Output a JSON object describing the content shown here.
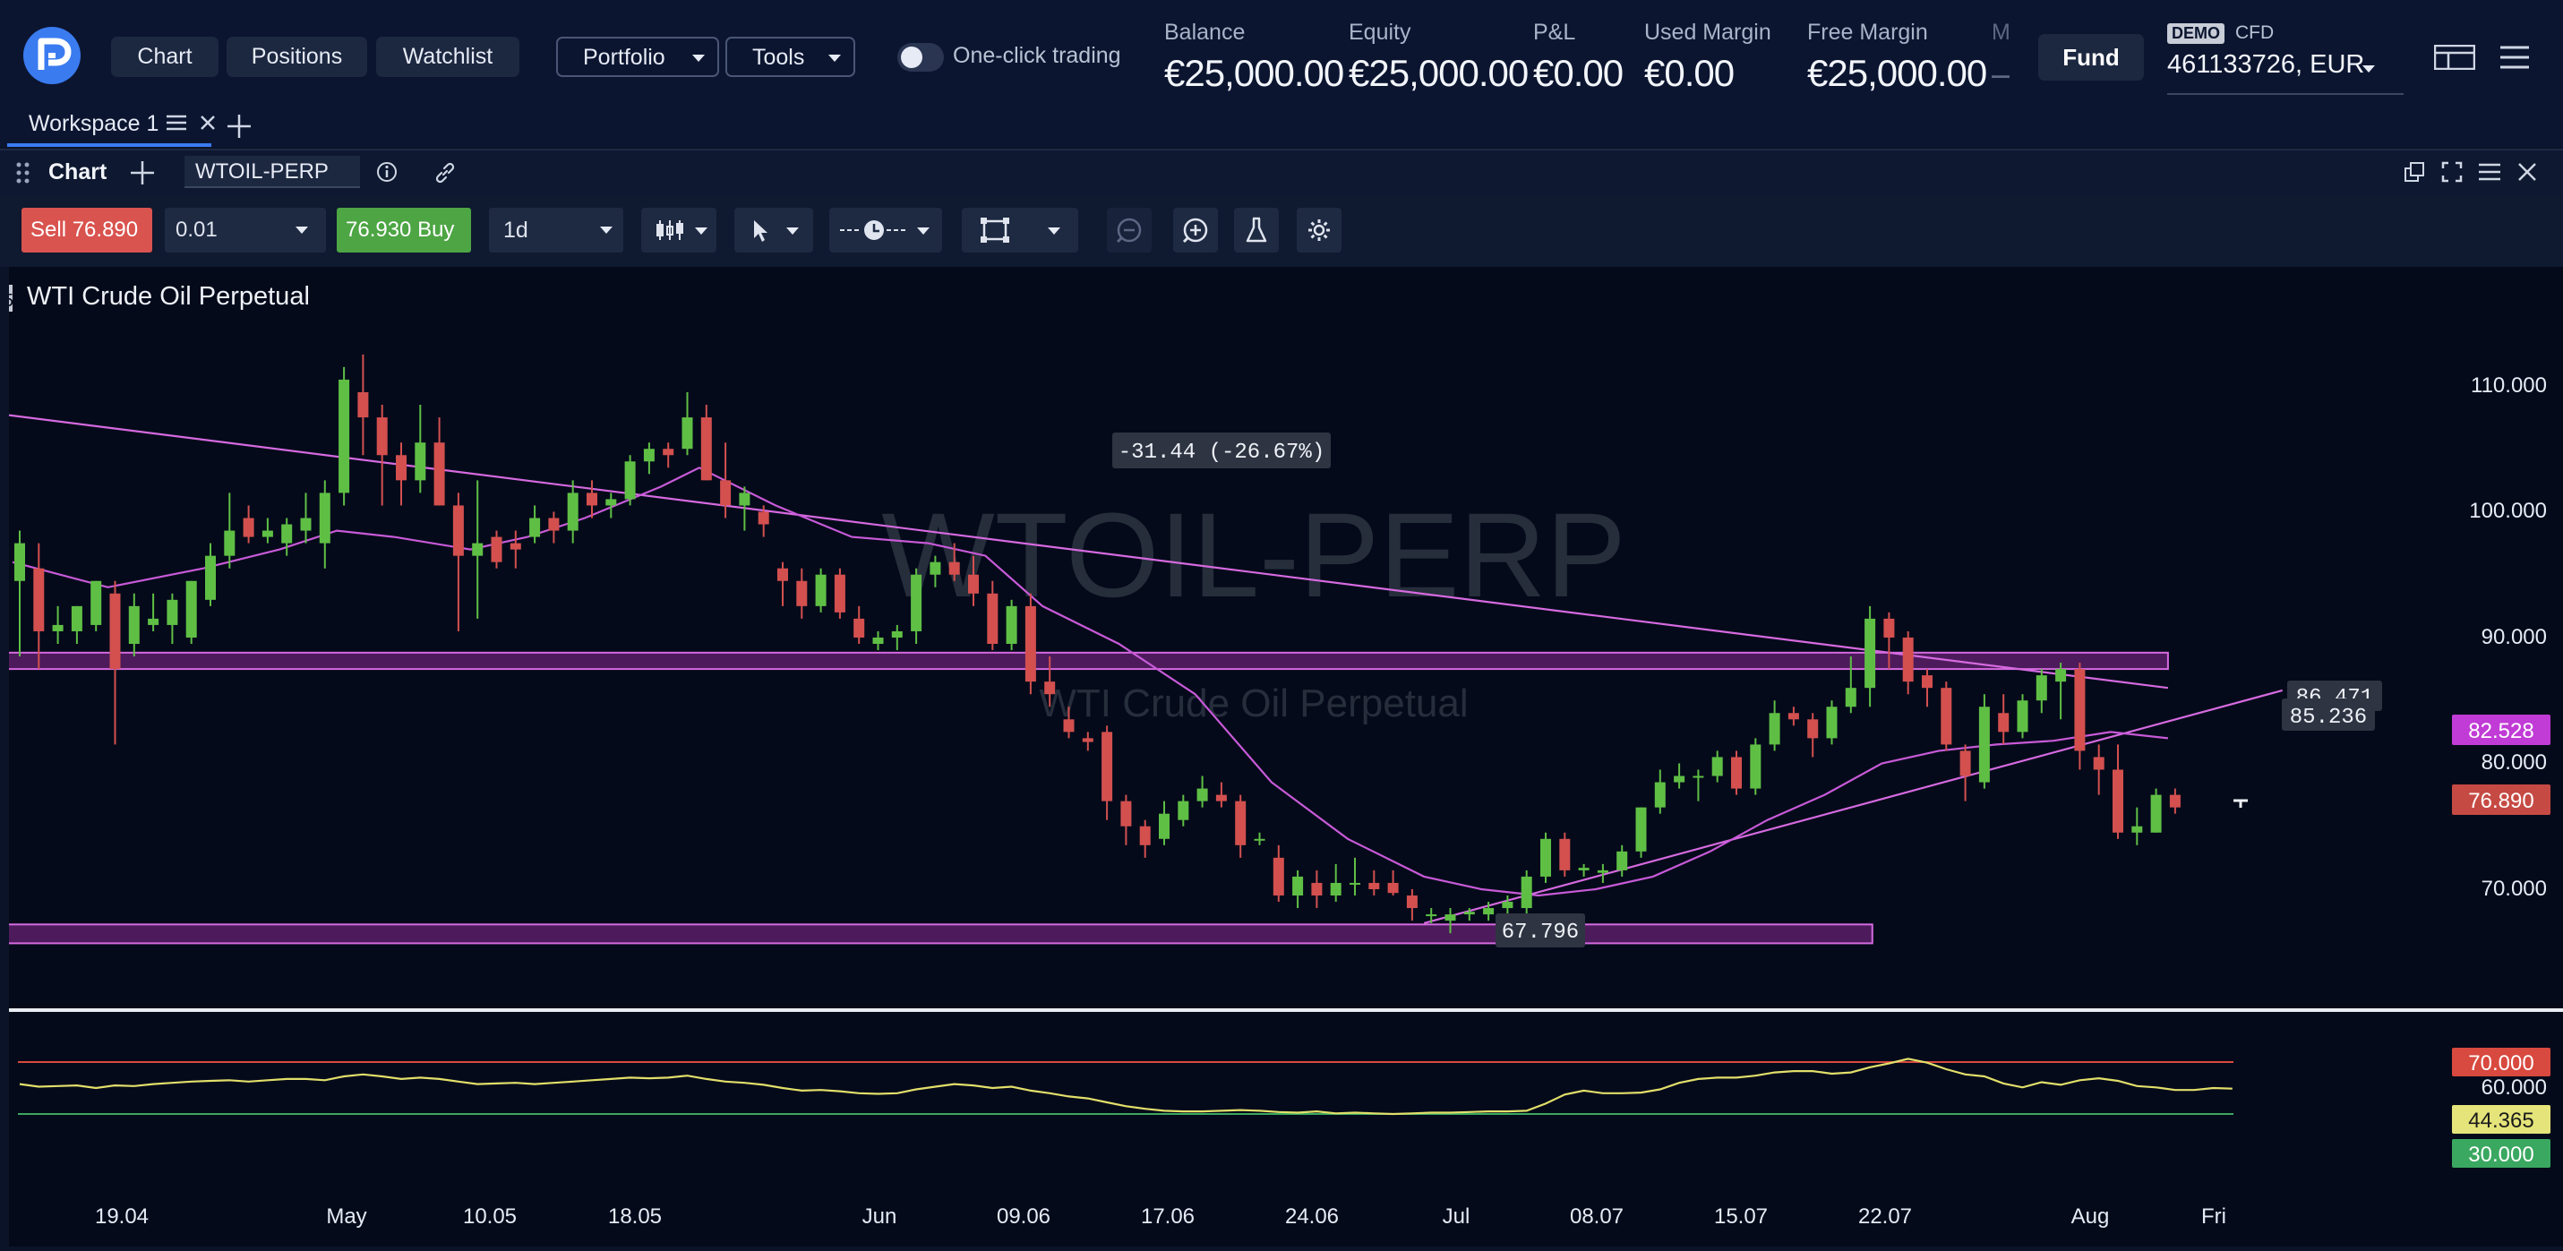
{
  "topbar": {
    "nav": [
      "Chart",
      "Positions",
      "Watchlist"
    ],
    "menus": [
      "Portfolio",
      "Tools"
    ],
    "one_click_label": "One-click trading",
    "stats": [
      {
        "label": "Balance",
        "value": "€25,000.00"
      },
      {
        "label": "Equity",
        "value": "€25,000.00"
      },
      {
        "label": "P&L",
        "value": "€0.00"
      },
      {
        "label": "Used Margin",
        "value": "€0.00"
      },
      {
        "label": "Free Margin",
        "value": "€25,000.00"
      },
      {
        "label": "M",
        "value": "–"
      }
    ],
    "fund_label": "Fund",
    "demo_badge": "DEMO",
    "account_type": "CFD",
    "account": "461133726, EUR"
  },
  "workspace": {
    "tab_label": "Workspace 1"
  },
  "panel": {
    "title": "Chart",
    "symbol": "WTOIL-PERP"
  },
  "toolbar": {
    "sell_label": "Sell",
    "sell_price": "76.890",
    "quantity": "0.01",
    "buy_price": "76.930",
    "buy_label": "Buy",
    "timeframe": "1d"
  },
  "chart": {
    "name": "WTI Crude Oil Perpetual",
    "watermark_symbol": "WTOIL-PERP",
    "watermark_name": "WTI Crude Oil Perpetual",
    "left_edge_marker": "5",
    "measure_label": "-31.44 (-26.67%)",
    "low_label": "67.796",
    "line_label_a": "86.471",
    "line_label_b": "85.236",
    "price_ticks": [
      "110.000",
      "100.000",
      "90.000",
      "80.000",
      "70.000"
    ],
    "badges": [
      {
        "value": "82.528",
        "color": "#c13bd6"
      },
      {
        "value": "76.890",
        "color": "#c64a44"
      }
    ],
    "rsi_ticks": [
      "60.000"
    ],
    "rsi_badges": [
      {
        "value": "70.000",
        "color": "#d8493f"
      },
      {
        "value": "44.365",
        "color": "#e4e47a"
      },
      {
        "value": "30.000",
        "color": "#3aa860"
      }
    ],
    "date_ticks": [
      "19.04",
      "May",
      "10.05",
      "18.05",
      "Jun",
      "09.06",
      "17.06",
      "24.06",
      "Jul",
      "08.07",
      "15.07",
      "22.07",
      "Aug",
      "Fri"
    ],
    "colors": {
      "up": "#5fbf45",
      "down": "#d3504f",
      "ma": "#c85ad8",
      "trend": "#d66ae0",
      "rsi": "#e2df6a"
    }
  },
  "chart_data": {
    "type": "candlestick",
    "title": "WTI Crude Oil Perpetual",
    "ylim": [
      60,
      115
    ],
    "candles": [
      {
        "o": 95,
        "h": 99,
        "l": 89,
        "c": 98
      },
      {
        "o": 96,
        "h": 98,
        "l": 88,
        "c": 91
      },
      {
        "o": 91,
        "h": 93,
        "l": 90,
        "c": 91.5
      },
      {
        "o": 91,
        "h": 93,
        "l": 90,
        "c": 93
      },
      {
        "o": 91.5,
        "h": 95,
        "l": 91,
        "c": 95
      },
      {
        "o": 94,
        "h": 95,
        "l": 82,
        "c": 88
      },
      {
        "o": 90,
        "h": 94,
        "l": 89,
        "c": 93
      },
      {
        "o": 91.5,
        "h": 94,
        "l": 91,
        "c": 92
      },
      {
        "o": 91.5,
        "h": 94,
        "l": 90,
        "c": 93.5
      },
      {
        "o": 90.5,
        "h": 95,
        "l": 90,
        "c": 95
      },
      {
        "o": 93.5,
        "h": 98,
        "l": 93,
        "c": 97
      },
      {
        "o": 97,
        "h": 102,
        "l": 96,
        "c": 99
      },
      {
        "o": 100,
        "h": 101,
        "l": 98,
        "c": 98.5
      },
      {
        "o": 98.5,
        "h": 100,
        "l": 98,
        "c": 99
      },
      {
        "o": 98,
        "h": 100,
        "l": 97,
        "c": 99.5
      },
      {
        "o": 99,
        "h": 102,
        "l": 98,
        "c": 100
      },
      {
        "o": 98,
        "h": 103,
        "l": 96,
        "c": 102
      },
      {
        "o": 102,
        "h": 112,
        "l": 101,
        "c": 111
      },
      {
        "o": 110,
        "h": 113,
        "l": 105,
        "c": 108
      },
      {
        "o": 108,
        "h": 109,
        "l": 101,
        "c": 105
      },
      {
        "o": 105,
        "h": 106,
        "l": 101,
        "c": 103
      },
      {
        "o": 103,
        "h": 109,
        "l": 102,
        "c": 106
      },
      {
        "o": 106,
        "h": 108,
        "l": 101,
        "c": 101
      },
      {
        "o": 101,
        "h": 102,
        "l": 91,
        "c": 97
      },
      {
        "o": 97,
        "h": 103,
        "l": 92,
        "c": 98
      },
      {
        "o": 98.5,
        "h": 99,
        "l": 96,
        "c": 96.5
      },
      {
        "o": 98,
        "h": 99,
        "l": 96,
        "c": 97.5
      },
      {
        "o": 98.5,
        "h": 101,
        "l": 98,
        "c": 100
      },
      {
        "o": 100,
        "h": 100.5,
        "l": 98,
        "c": 99
      },
      {
        "o": 99,
        "h": 103,
        "l": 98,
        "c": 102
      },
      {
        "o": 102,
        "h": 103,
        "l": 100,
        "c": 101
      },
      {
        "o": 101,
        "h": 102,
        "l": 100,
        "c": 101.5
      },
      {
        "o": 101.5,
        "h": 105,
        "l": 101,
        "c": 104.5
      },
      {
        "o": 104.5,
        "h": 106,
        "l": 103.5,
        "c": 105.5
      },
      {
        "o": 105.5,
        "h": 106,
        "l": 104,
        "c": 105
      },
      {
        "o": 105.5,
        "h": 110,
        "l": 105,
        "c": 108
      },
      {
        "o": 108,
        "h": 109,
        "l": 103,
        "c": 103
      },
      {
        "o": 103,
        "h": 106,
        "l": 100,
        "c": 101
      },
      {
        "o": 101,
        "h": 102.5,
        "l": 99,
        "c": 102
      },
      {
        "o": 100.5,
        "h": 101,
        "l": 98.5,
        "c": 99.5
      },
      {
        "o": 96,
        "h": 96.5,
        "l": 93,
        "c": 95
      },
      {
        "o": 95,
        "h": 96,
        "l": 92,
        "c": 93
      },
      {
        "o": 93,
        "h": 96,
        "l": 92.5,
        "c": 95.5
      },
      {
        "o": 95.5,
        "h": 96,
        "l": 92,
        "c": 92.5
      },
      {
        "o": 92,
        "h": 93,
        "l": 90,
        "c": 90.5
      },
      {
        "o": 90,
        "h": 91,
        "l": 89.5,
        "c": 90.5
      },
      {
        "o": 90.5,
        "h": 91.5,
        "l": 89.5,
        "c": 91
      },
      {
        "o": 91,
        "h": 96,
        "l": 90,
        "c": 95.5
      },
      {
        "o": 95.5,
        "h": 97,
        "l": 94.5,
        "c": 96.5
      },
      {
        "o": 96.5,
        "h": 98,
        "l": 95,
        "c": 95.5
      },
      {
        "o": 95.5,
        "h": 97,
        "l": 93,
        "c": 94
      },
      {
        "o": 94,
        "h": 95,
        "l": 89.5,
        "c": 90
      },
      {
        "o": 90,
        "h": 93.5,
        "l": 89.5,
        "c": 93
      },
      {
        "o": 93,
        "h": 94,
        "l": 86,
        "c": 87
      },
      {
        "o": 87,
        "h": 89,
        "l": 85,
        "c": 86
      },
      {
        "o": 84,
        "h": 85,
        "l": 82.5,
        "c": 83
      },
      {
        "o": 82.5,
        "h": 83,
        "l": 81.5,
        "c": 82.2
      },
      {
        "o": 83,
        "h": 83.5,
        "l": 76,
        "c": 77.5
      },
      {
        "o": 77.5,
        "h": 78,
        "l": 74,
        "c": 75.5
      },
      {
        "o": 75.5,
        "h": 76,
        "l": 73,
        "c": 74
      },
      {
        "o": 74.5,
        "h": 77.5,
        "l": 74,
        "c": 76.5
      },
      {
        "o": 76,
        "h": 78,
        "l": 75.5,
        "c": 77.5
      },
      {
        "o": 77.5,
        "h": 79.5,
        "l": 77,
        "c": 78.5
      },
      {
        "o": 78,
        "h": 79,
        "l": 77,
        "c": 77.5
      },
      {
        "o": 77.5,
        "h": 78,
        "l": 73,
        "c": 74
      },
      {
        "o": 74.5,
        "h": 75,
        "l": 74,
        "c": 74.5
      },
      {
        "o": 73,
        "h": 74,
        "l": 69.5,
        "c": 70
      },
      {
        "o": 70,
        "h": 72,
        "l": 69,
        "c": 71.5
      },
      {
        "o": 71,
        "h": 72,
        "l": 69,
        "c": 70
      },
      {
        "o": 70,
        "h": 72.5,
        "l": 69.5,
        "c": 71
      },
      {
        "o": 71,
        "h": 73,
        "l": 70,
        "c": 71
      },
      {
        "o": 71,
        "h": 72,
        "l": 70,
        "c": 70.5
      },
      {
        "o": 71,
        "h": 72,
        "l": 70,
        "c": 70.2
      },
      {
        "o": 70,
        "h": 70.5,
        "l": 68,
        "c": 69
      },
      {
        "o": 68.5,
        "h": 69,
        "l": 67.8,
        "c": 68.5
      },
      {
        "o": 68,
        "h": 69,
        "l": 67,
        "c": 68.5
      },
      {
        "o": 68.5,
        "h": 69,
        "l": 68,
        "c": 68.7
      },
      {
        "o": 68.5,
        "h": 69.5,
        "l": 68,
        "c": 69
      },
      {
        "o": 69,
        "h": 70,
        "l": 68,
        "c": 69.5
      },
      {
        "o": 69,
        "h": 72,
        "l": 68.5,
        "c": 71.5
      },
      {
        "o": 71.5,
        "h": 75,
        "l": 71,
        "c": 74.5
      },
      {
        "o": 74.5,
        "h": 75,
        "l": 71.5,
        "c": 72
      },
      {
        "o": 72,
        "h": 72.5,
        "l": 71.5,
        "c": 72.2
      },
      {
        "o": 71.8,
        "h": 72.5,
        "l": 71,
        "c": 72
      },
      {
        "o": 72,
        "h": 74,
        "l": 71.5,
        "c": 73.5
      },
      {
        "o": 73.5,
        "h": 77,
        "l": 73,
        "c": 77
      },
      {
        "o": 77,
        "h": 80,
        "l": 76.5,
        "c": 79
      },
      {
        "o": 79,
        "h": 80.5,
        "l": 78.5,
        "c": 79.5
      },
      {
        "o": 79.5,
        "h": 80,
        "l": 77.5,
        "c": 79.5
      },
      {
        "o": 79.5,
        "h": 81.5,
        "l": 79,
        "c": 81
      },
      {
        "o": 81,
        "h": 81.5,
        "l": 78,
        "c": 78.5
      },
      {
        "o": 78.5,
        "h": 82.5,
        "l": 78,
        "c": 82
      },
      {
        "o": 82,
        "h": 85.5,
        "l": 81.5,
        "c": 84.5
      },
      {
        "o": 84.5,
        "h": 85,
        "l": 83.5,
        "c": 84
      },
      {
        "o": 84,
        "h": 84.5,
        "l": 81,
        "c": 82.5
      },
      {
        "o": 82.5,
        "h": 85.5,
        "l": 82,
        "c": 85
      },
      {
        "o": 85,
        "h": 89,
        "l": 84.5,
        "c": 86.5
      },
      {
        "o": 86.5,
        "h": 93,
        "l": 85,
        "c": 92
      },
      {
        "o": 92,
        "h": 92.5,
        "l": 88,
        "c": 90.5
      },
      {
        "o": 90.5,
        "h": 91,
        "l": 86,
        "c": 87
      },
      {
        "o": 87.5,
        "h": 88,
        "l": 85,
        "c": 86.5
      },
      {
        "o": 86.5,
        "h": 87,
        "l": 81.5,
        "c": 82
      },
      {
        "o": 81.5,
        "h": 82,
        "l": 77.5,
        "c": 79.5
      },
      {
        "o": 79,
        "h": 86,
        "l": 78.5,
        "c": 85
      },
      {
        "o": 84.5,
        "h": 86,
        "l": 82,
        "c": 83
      },
      {
        "o": 83,
        "h": 86,
        "l": 82.5,
        "c": 85.5
      },
      {
        "o": 85.5,
        "h": 88,
        "l": 84.5,
        "c": 87.5
      },
      {
        "o": 87,
        "h": 88.5,
        "l": 84,
        "c": 88
      },
      {
        "o": 88,
        "h": 88.5,
        "l": 80,
        "c": 81.5
      },
      {
        "o": 81,
        "h": 82,
        "l": 78,
        "c": 80
      },
      {
        "o": 80,
        "h": 82,
        "l": 74.5,
        "c": 75
      },
      {
        "o": 75,
        "h": 77,
        "l": 74,
        "c": 75.5
      },
      {
        "o": 75,
        "h": 78.5,
        "l": 75,
        "c": 78
      },
      {
        "o": 78,
        "h": 78.5,
        "l": 76.5,
        "c": 77
      }
    ],
    "moving_average": [
      {
        "i": 0,
        "v": 96.5
      },
      {
        "i": 5,
        "v": 94.5
      },
      {
        "i": 10,
        "v": 96
      },
      {
        "i": 14,
        "v": 97.5
      },
      {
        "i": 17,
        "v": 99
      },
      {
        "i": 20,
        "v": 98.5
      },
      {
        "i": 24,
        "v": 97.5
      },
      {
        "i": 27,
        "v": 98.5
      },
      {
        "i": 30,
        "v": 100
      },
      {
        "i": 34,
        "v": 102.5
      },
      {
        "i": 36,
        "v": 104
      },
      {
        "i": 40,
        "v": 101
      },
      {
        "i": 44,
        "v": 98.5
      },
      {
        "i": 48,
        "v": 98
      },
      {
        "i": 51,
        "v": 97
      },
      {
        "i": 54,
        "v": 93
      },
      {
        "i": 58,
        "v": 90
      },
      {
        "i": 62,
        "v": 86
      },
      {
        "i": 66,
        "v": 79
      },
      {
        "i": 70,
        "v": 74.5
      },
      {
        "i": 74,
        "v": 71.5
      },
      {
        "i": 77,
        "v": 70.5
      },
      {
        "i": 80,
        "v": 70
      },
      {
        "i": 83,
        "v": 70.5
      },
      {
        "i": 86,
        "v": 71.5
      },
      {
        "i": 89,
        "v": 73.5
      },
      {
        "i": 92,
        "v": 76
      },
      {
        "i": 95,
        "v": 78
      },
      {
        "i": 98,
        "v": 80.5
      },
      {
        "i": 101,
        "v": 81.5
      },
      {
        "i": 104,
        "v": 82
      },
      {
        "i": 107,
        "v": 82.3
      },
      {
        "i": 110,
        "v": 83
      },
      {
        "i": 113,
        "v": 82.5
      }
    ],
    "trendlines": [
      {
        "from": {
          "i": -0.3,
          "v": 108.2
        },
        "to": {
          "i": 113,
          "v": 86.5
        }
      },
      {
        "from": {
          "i": 74,
          "v": 67.8
        },
        "to": {
          "i": 119,
          "v": 86.3
        }
      }
    ],
    "zones": [
      {
        "from_i": -0.3,
        "to_i": 113,
        "low": 88,
        "high": 89.3
      },
      {
        "from_i": -0.3,
        "to_i": 97.5,
        "low": 66.2,
        "high": 67.7
      }
    ],
    "rsi": {
      "levels": [
        70,
        30
      ],
      "ylim": [
        25,
        75
      ],
      "values": [
        53,
        51,
        51.5,
        52,
        50,
        52,
        51.5,
        53,
        54,
        55,
        55.5,
        56,
        55,
        56,
        57,
        57,
        56,
        59,
        60.5,
        59,
        57,
        58,
        57,
        55,
        53,
        53.5,
        54,
        53,
        54,
        55,
        56,
        57,
        58,
        57.5,
        58,
        59.5,
        57,
        55,
        54,
        52.5,
        50,
        48,
        48.5,
        47.5,
        46,
        45.5,
        46,
        49,
        51,
        53,
        52,
        50,
        51,
        48,
        46,
        43.5,
        42,
        39,
        36,
        34,
        32.5,
        32,
        32,
        32.5,
        33,
        32.5,
        31.5,
        31,
        32,
        30.5,
        31,
        30.5,
        30,
        30.5,
        31,
        31,
        31.5,
        32,
        32,
        32.5,
        38,
        45,
        48,
        46,
        46,
        46.5,
        49,
        54,
        57,
        58,
        58,
        59.5,
        62,
        63,
        63,
        61,
        62,
        66,
        69,
        72.5,
        69.5,
        64.5,
        60.5,
        59,
        53.5,
        50.5,
        54.5,
        52.5,
        56,
        57.5,
        55.5,
        51.5,
        50.5,
        48.5,
        48.5,
        50,
        49.5
      ]
    }
  }
}
